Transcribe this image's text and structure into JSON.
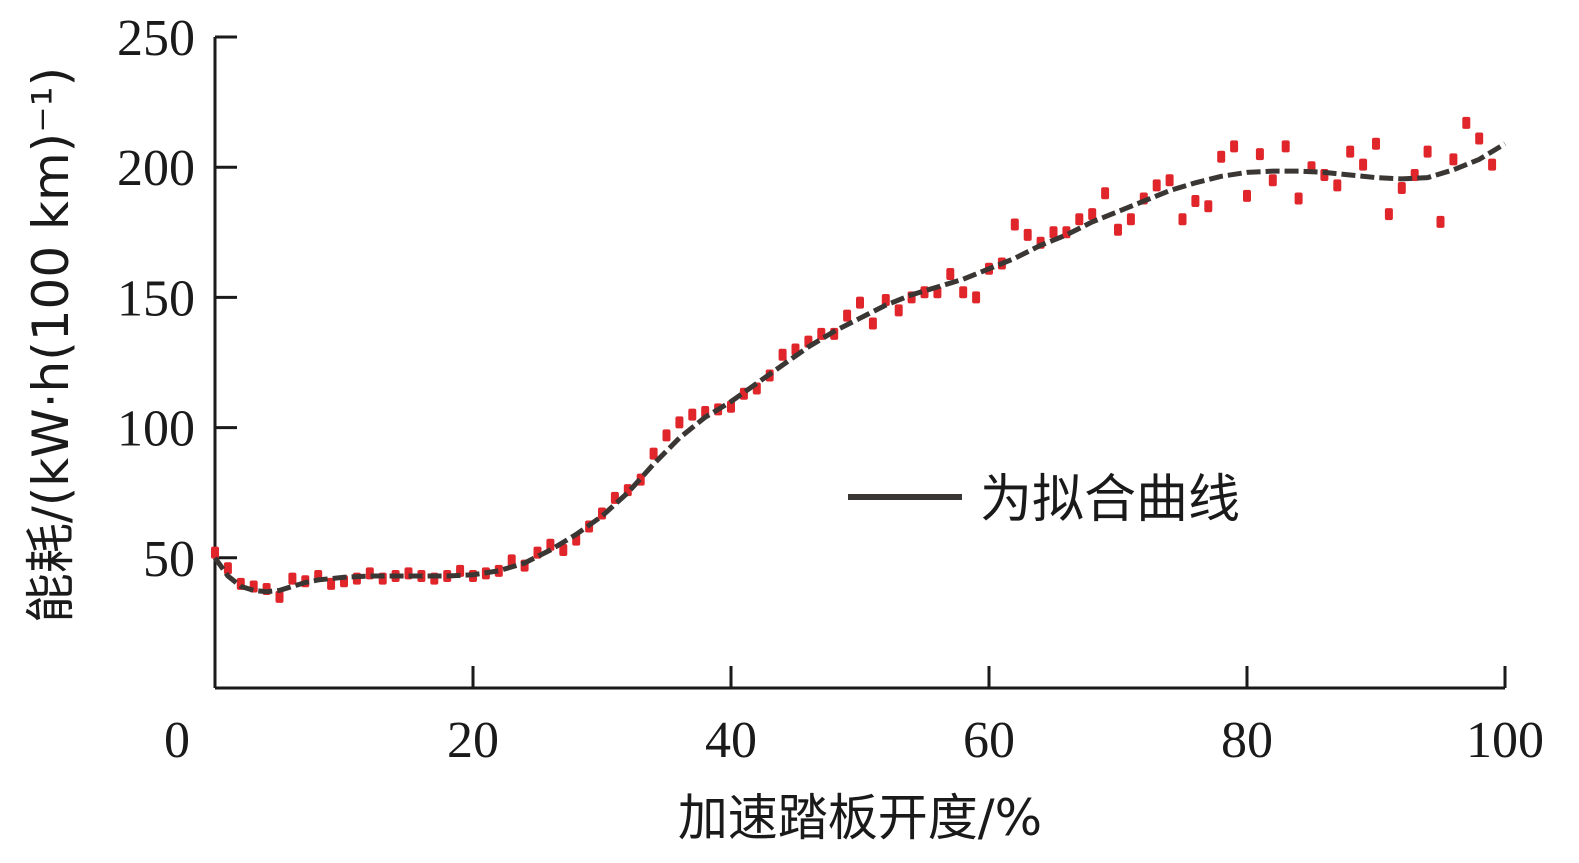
{
  "chart_data": {
    "type": "scatter",
    "xlabel": "加速踏板开度/%",
    "ylabel": "能耗/(kW·h(100 km)⁻¹)",
    "xlim": [
      0,
      100
    ],
    "ylim": [
      0,
      250
    ],
    "xticks": [
      0,
      20,
      40,
      60,
      80,
      100
    ],
    "yticks": [
      50,
      100,
      150,
      200,
      250
    ],
    "legend": {
      "label": "为拟合曲线",
      "placement": "center-right"
    },
    "colors": {
      "points": "#e0262b",
      "fit": "#3a3633",
      "axis": "#1a1a1a"
    },
    "series": [
      {
        "values": [
          [
            0,
            52
          ],
          [
            1,
            46
          ],
          [
            2,
            40
          ],
          [
            3,
            39
          ],
          [
            4,
            38
          ],
          [
            5,
            35
          ],
          [
            6,
            42
          ],
          [
            7,
            41
          ],
          [
            8,
            43
          ],
          [
            9,
            40
          ],
          [
            10,
            41
          ],
          [
            11,
            42
          ],
          [
            12,
            44
          ],
          [
            13,
            42
          ],
          [
            14,
            43
          ],
          [
            15,
            44
          ],
          [
            16,
            43
          ],
          [
            17,
            42
          ],
          [
            18,
            43
          ],
          [
            19,
            45
          ],
          [
            20,
            43
          ],
          [
            21,
            44
          ],
          [
            22,
            45
          ],
          [
            23,
            49
          ],
          [
            24,
            47
          ],
          [
            25,
            52
          ],
          [
            26,
            55
          ],
          [
            27,
            53
          ],
          [
            28,
            57
          ],
          [
            29,
            62
          ],
          [
            30,
            67
          ],
          [
            31,
            73
          ],
          [
            32,
            76
          ],
          [
            33,
            80
          ],
          [
            34,
            90
          ],
          [
            35,
            97
          ],
          [
            36,
            102
          ],
          [
            37,
            105
          ],
          [
            38,
            106
          ],
          [
            39,
            107
          ],
          [
            40,
            108
          ],
          [
            41,
            113
          ],
          [
            42,
            115
          ],
          [
            43,
            120
          ],
          [
            44,
            128
          ],
          [
            45,
            130
          ],
          [
            46,
            133
          ],
          [
            47,
            136
          ],
          [
            48,
            136
          ],
          [
            49,
            143
          ],
          [
            50,
            148
          ],
          [
            51,
            140
          ],
          [
            52,
            149
          ],
          [
            53,
            145
          ],
          [
            54,
            150
          ],
          [
            55,
            152
          ],
          [
            56,
            152
          ],
          [
            57,
            159
          ],
          [
            58,
            152
          ],
          [
            59,
            150
          ],
          [
            60,
            161
          ],
          [
            61,
            163
          ],
          [
            62,
            178
          ],
          [
            63,
            174
          ],
          [
            64,
            171
          ],
          [
            65,
            175
          ],
          [
            66,
            175
          ],
          [
            67,
            180
          ],
          [
            68,
            182
          ],
          [
            69,
            190
          ],
          [
            70,
            176
          ],
          [
            71,
            180
          ],
          [
            72,
            188
          ],
          [
            73,
            193
          ],
          [
            74,
            195
          ],
          [
            75,
            180
          ],
          [
            76,
            187
          ],
          [
            77,
            185
          ],
          [
            78,
            204
          ],
          [
            79,
            208
          ],
          [
            80,
            189
          ],
          [
            81,
            205
          ],
          [
            82,
            195
          ],
          [
            83,
            208
          ],
          [
            84,
            188
          ],
          [
            85,
            200
          ],
          [
            86,
            197
          ],
          [
            87,
            193
          ],
          [
            88,
            206
          ],
          [
            89,
            201
          ],
          [
            90,
            209
          ],
          [
            91,
            182
          ],
          [
            92,
            192
          ],
          [
            93,
            197
          ],
          [
            94,
            206
          ],
          [
            95,
            179
          ],
          [
            96,
            203
          ],
          [
            97,
            217
          ],
          [
            98,
            211
          ],
          [
            99,
            201
          ]
        ]
      }
    ],
    "fit_curve": [
      [
        0,
        50
      ],
      [
        1,
        43
      ],
      [
        2,
        39
      ],
      [
        3,
        37.5
      ],
      [
        4,
        37
      ],
      [
        5,
        37.5
      ],
      [
        6,
        39
      ],
      [
        7,
        40.5
      ],
      [
        8,
        41.5
      ],
      [
        10,
        42.5
      ],
      [
        12,
        43
      ],
      [
        15,
        43
      ],
      [
        18,
        43
      ],
      [
        20,
        43.5
      ],
      [
        22,
        45
      ],
      [
        24,
        48
      ],
      [
        26,
        53
      ],
      [
        28,
        59
      ],
      [
        30,
        66
      ],
      [
        32,
        75
      ],
      [
        34,
        86
      ],
      [
        36,
        96
      ],
      [
        38,
        104
      ],
      [
        40,
        110
      ],
      [
        42,
        117
      ],
      [
        44,
        124
      ],
      [
        46,
        131
      ],
      [
        48,
        137
      ],
      [
        50,
        142
      ],
      [
        52,
        147
      ],
      [
        54,
        151
      ],
      [
        56,
        154
      ],
      [
        58,
        157
      ],
      [
        60,
        161
      ],
      [
        62,
        165
      ],
      [
        64,
        170
      ],
      [
        66,
        174
      ],
      [
        68,
        179
      ],
      [
        70,
        183
      ],
      [
        72,
        187
      ],
      [
        74,
        191
      ],
      [
        76,
        194
      ],
      [
        78,
        196.5
      ],
      [
        80,
        198
      ],
      [
        82,
        198.5
      ],
      [
        84,
        198.5
      ],
      [
        86,
        198
      ],
      [
        88,
        197
      ],
      [
        90,
        196
      ],
      [
        92,
        195.5
      ],
      [
        94,
        196
      ],
      [
        96,
        199
      ],
      [
        98,
        203
      ],
      [
        100,
        209
      ]
    ]
  }
}
